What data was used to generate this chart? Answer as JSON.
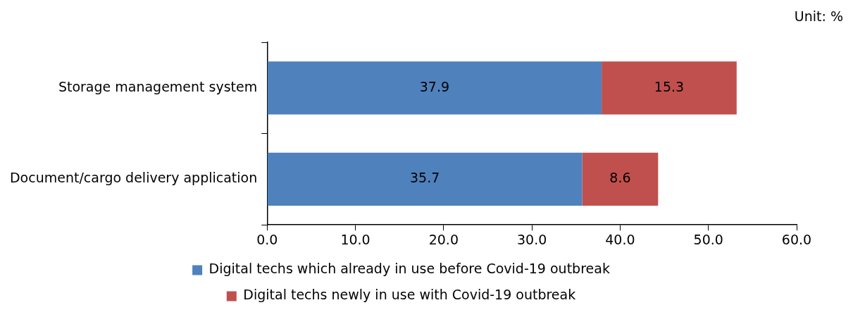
{
  "chart_data": {
    "type": "bar",
    "orientation": "horizontal",
    "stacked": true,
    "categories": [
      "Storage management system",
      "Document/cargo delivery application"
    ],
    "series": [
      {
        "name": "Digital techs which already in use before Covid-19 outbreak",
        "color": "#4f81bd",
        "values": [
          37.9,
          35.7
        ]
      },
      {
        "name": "Digital techs newly in use with Covid-19 outbreak",
        "color": "#c0504d",
        "values": [
          15.3,
          8.6
        ]
      }
    ],
    "xlim": [
      0,
      60
    ],
    "xticks": [
      {
        "value": 0,
        "label": "0.0"
      },
      {
        "value": 10,
        "label": "10.0"
      },
      {
        "value": 20,
        "label": "20.0"
      },
      {
        "value": 30,
        "label": "30.0"
      },
      {
        "value": 40,
        "label": "40.0"
      },
      {
        "value": 50,
        "label": "50.0"
      },
      {
        "value": 60,
        "label": "60.0"
      }
    ],
    "data_labels": true,
    "grid": false,
    "legend": "bottom",
    "annotations": [
      "Unit: %"
    ]
  }
}
